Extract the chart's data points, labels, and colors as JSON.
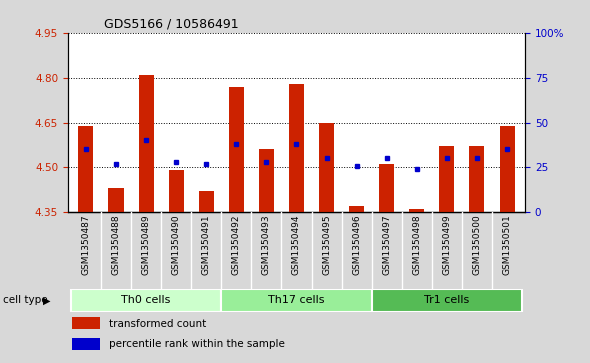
{
  "title": "GDS5166 / 10586491",
  "samples": [
    "GSM1350487",
    "GSM1350488",
    "GSM1350489",
    "GSM1350490",
    "GSM1350491",
    "GSM1350492",
    "GSM1350493",
    "GSM1350494",
    "GSM1350495",
    "GSM1350496",
    "GSM1350497",
    "GSM1350498",
    "GSM1350499",
    "GSM1350500",
    "GSM1350501"
  ],
  "transformed_count": [
    4.64,
    4.43,
    4.81,
    4.49,
    4.42,
    4.77,
    4.56,
    4.78,
    4.65,
    4.37,
    4.51,
    4.36,
    4.57,
    4.57,
    4.64
  ],
  "percentile_rank": [
    35,
    27,
    40,
    28,
    27,
    38,
    28,
    38,
    30,
    26,
    30,
    24,
    30,
    30,
    35
  ],
  "cell_types": [
    {
      "label": "Th0 cells",
      "start": 0,
      "end": 5,
      "color": "#ccffcc"
    },
    {
      "label": "Th17 cells",
      "start": 5,
      "end": 10,
      "color": "#99ee99"
    },
    {
      "label": "Tr1 cells",
      "start": 10,
      "end": 15,
      "color": "#55bb55"
    }
  ],
  "ylim_left": [
    4.35,
    4.95
  ],
  "ylim_right": [
    0,
    100
  ],
  "bar_color": "#cc2200",
  "dot_color": "#0000cc",
  "bar_width": 0.5,
  "baseline": 4.35,
  "grid_yticks_left": [
    4.35,
    4.5,
    4.65,
    4.8,
    4.95
  ],
  "grid_yticks_right": [
    0,
    25,
    50,
    75,
    100
  ],
  "bg_color": "#d8d8d8",
  "plot_bg_color": "#ffffff",
  "tick_label_bg": "#c8c8c8",
  "legend_items": [
    "transformed count",
    "percentile rank within the sample"
  ],
  "cell_type_label": "cell type"
}
